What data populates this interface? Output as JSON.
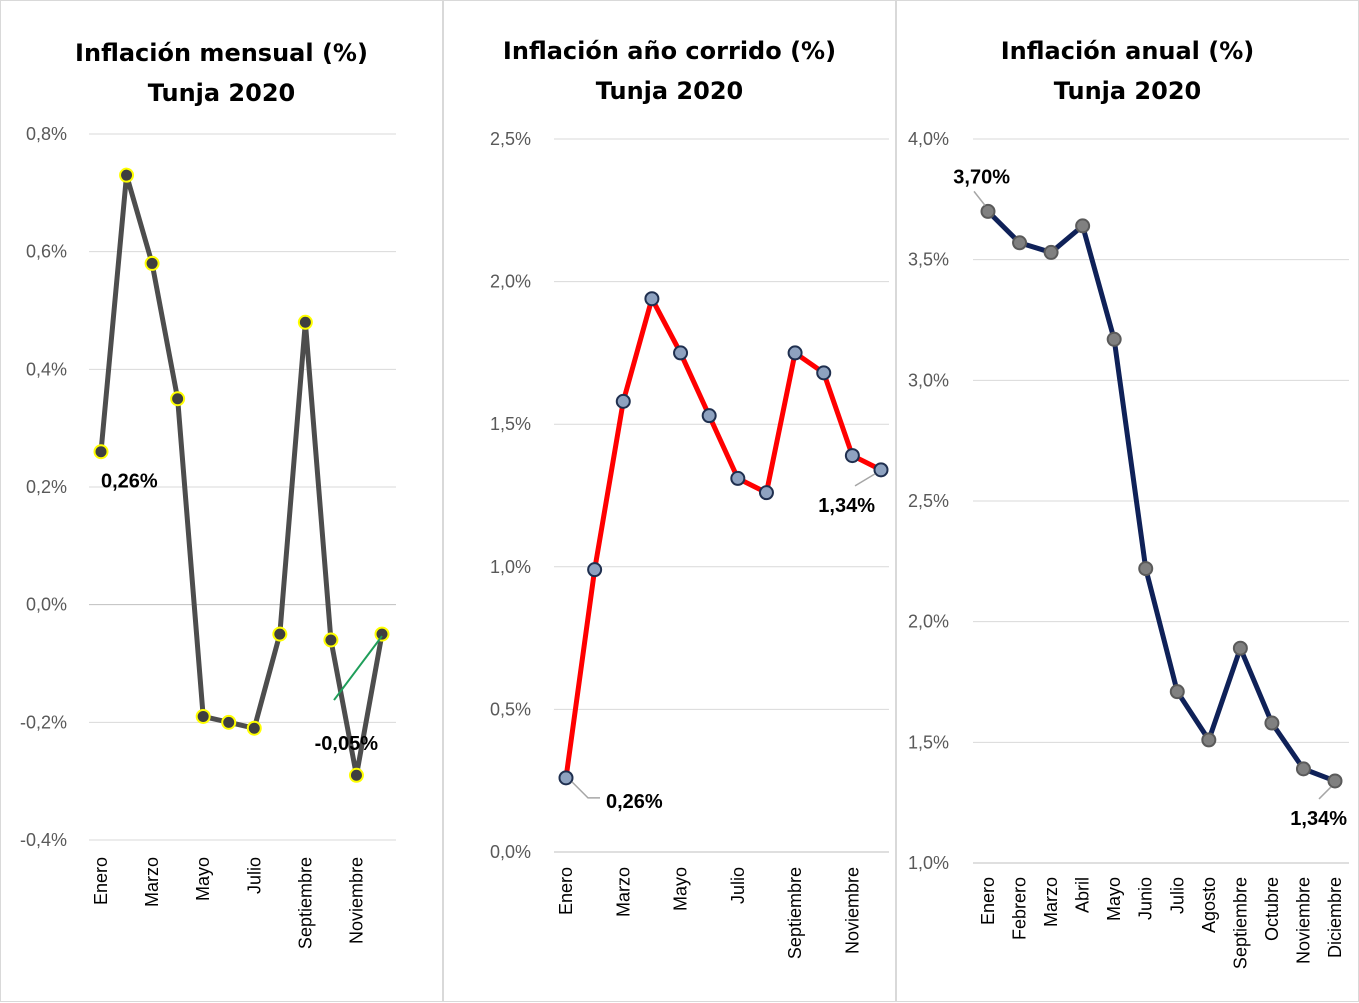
{
  "chart_data": [
    {
      "type": "line",
      "title": "Inflación mensual (%)",
      "subtitle": "Tunja 2020",
      "categories": [
        "Enero",
        "Febrero",
        "Marzo",
        "Abril",
        "Mayo",
        "Junio",
        "Julio",
        "Agosto",
        "Septiembre",
        "Octubre",
        "Noviembre",
        "Diciembre"
      ],
      "shown_tick_labels": [
        "Enero",
        "Marzo",
        "Mayo",
        "Julio",
        "Septiembre",
        "Noviembre"
      ],
      "values": [
        0.26,
        0.73,
        0.58,
        0.35,
        -0.19,
        -0.2,
        -0.21,
        -0.05,
        0.48,
        -0.06,
        -0.29,
        -0.05
      ],
      "ylim": [
        -0.4,
        0.8
      ],
      "yticks": [
        "-0,4%",
        "-0,2%",
        "0,0%",
        "0,2%",
        "0,4%",
        "0,6%",
        "0,8%"
      ],
      "line_color": "#4d4d4d",
      "marker_fill": "#3f3f3f",
      "marker_edge": "#ffff00",
      "grid": true,
      "data_labels": [
        {
          "index": 0,
          "text": "0,26%"
        },
        {
          "index": 11,
          "text": "-0,05%"
        }
      ]
    },
    {
      "type": "line",
      "title": "Inflación año corrido (%)",
      "subtitle": "Tunja 2020",
      "categories": [
        "Enero",
        "Febrero",
        "Marzo",
        "Abril",
        "Mayo",
        "Junio",
        "Julio",
        "Agosto",
        "Septiembre",
        "Octubre",
        "Noviembre",
        "Diciembre"
      ],
      "shown_tick_labels": [
        "Enero",
        "Marzo",
        "Mayo",
        "Julio",
        "Septiembre",
        "Noviembre"
      ],
      "values": [
        0.26,
        0.99,
        1.58,
        1.94,
        1.75,
        1.53,
        1.31,
        1.26,
        1.75,
        1.68,
        1.39,
        1.34
      ],
      "ylim": [
        0.0,
        2.5
      ],
      "yticks": [
        "0,0%",
        "0,5%",
        "1,0%",
        "1,5%",
        "2,0%",
        "2,5%"
      ],
      "line_color": "#ff0000",
      "marker_fill": "#8ea2c0",
      "marker_edge": "#1f2f4f",
      "grid": true,
      "data_labels": [
        {
          "index": 0,
          "text": "0,26%"
        },
        {
          "index": 11,
          "text": "1,34%"
        }
      ]
    },
    {
      "type": "line",
      "title": "Inflación anual (%)",
      "subtitle": "Tunja 2020",
      "categories": [
        "Enero",
        "Febrero",
        "Marzo",
        "Abril",
        "Mayo",
        "Junio",
        "Julio",
        "Agosto",
        "Septiembre",
        "Octubre",
        "Noviembre",
        "Diciembre"
      ],
      "shown_tick_labels": [
        "Enero",
        "Febrero",
        "Marzo",
        "Abril",
        "Mayo",
        "Junio",
        "Julio",
        "Agosto",
        "Septiembre",
        "Octubre",
        "Noviembre",
        "Diciembre"
      ],
      "values": [
        3.7,
        3.57,
        3.53,
        3.64,
        3.17,
        2.22,
        1.71,
        1.51,
        1.89,
        1.58,
        1.39,
        1.34
      ],
      "ylim": [
        1.0,
        4.0
      ],
      "yticks": [
        "1,0%",
        "1,5%",
        "2,0%",
        "2,5%",
        "3,0%",
        "3,5%",
        "4,0%"
      ],
      "line_color": "#0f2158",
      "marker_fill": "#808080",
      "marker_edge": "#5a5a5a",
      "grid": true,
      "data_labels": [
        {
          "index": 0,
          "text": "3,70%"
        },
        {
          "index": 11,
          "text": "1,34%"
        }
      ]
    }
  ]
}
